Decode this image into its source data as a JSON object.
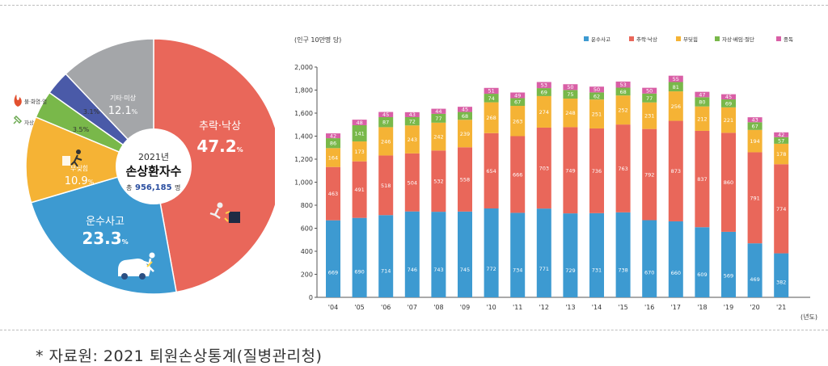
{
  "pie": {
    "center_year": "2021년",
    "center_title": "손상환자수",
    "center_total_prefix": "총",
    "center_total": "956,185",
    "center_total_unit": "명",
    "legend_fire": "불·화염·열",
    "legend_bite": "자상"
  },
  "bar": {
    "unit_label": "(인구 10만명 당)",
    "axis_unit": "(년도)"
  },
  "footnote": "* 자료원: 2021 퇴원손상통계(질병관리청)",
  "colors": {
    "traffic": "#3d9ad1",
    "fall": "#e9675a",
    "struck": "#f5b335",
    "cut": "#79b84a",
    "poison": "#d95fa6",
    "fire": "#9a9ca0",
    "other": "#a4a6a9",
    "pie_fire": "#4a5aa8",
    "pie_stab": "#79b84a"
  },
  "chart_data": [
    {
      "type": "pie",
      "title": "손상환자수",
      "slices": [
        {
          "label": "추락·낙상",
          "value": 47.2,
          "value_label": "47.2"
        },
        {
          "label": "운수사고",
          "value": 23.3,
          "value_label": "23.3"
        },
        {
          "label": "부딪힘",
          "value": 10.9,
          "value_label": "10.9"
        },
        {
          "label": "자상",
          "value": 3.5,
          "value_label": "3.5"
        },
        {
          "label": "불·화염·열",
          "value": 3.1,
          "value_label": "3.1"
        },
        {
          "label": "기타·미상",
          "value": 12.1,
          "value_label": "12.1"
        }
      ],
      "unit": "%"
    },
    {
      "type": "bar",
      "stacked": true,
      "categories": [
        "'04",
        "'05",
        "'06",
        "'07",
        "'08",
        "'09",
        "'10",
        "'11",
        "'12",
        "'13",
        "'14",
        "'15",
        "'16",
        "'17",
        "'18",
        "'19",
        "'20",
        "'21"
      ],
      "ylim": [
        0,
        2000
      ],
      "yticks": [
        "0",
        "200",
        "400",
        "600",
        "800",
        "1,000",
        "1,200",
        "1,400",
        "1,600",
        "1,800",
        "2,000"
      ],
      "ylabel": "(인구 10만명 당)",
      "xlabel": "(년도)",
      "legend_position": "top-right",
      "series": [
        {
          "name": "운수사고",
          "values": [
            669,
            690,
            714,
            746,
            743,
            745,
            772,
            734,
            771,
            729,
            731,
            738,
            670,
            660,
            609,
            569,
            469,
            382
          ]
        },
        {
          "name": "추락·낙상",
          "values": [
            463,
            491,
            518,
            504,
            532,
            558,
            654,
            666,
            703,
            749,
            736,
            763,
            792,
            873,
            837,
            860,
            791,
            774
          ]
        },
        {
          "name": "부딪힘",
          "values": [
            164,
            173,
            246,
            243,
            242,
            239,
            268,
            263,
            274,
            248,
            251,
            252,
            231,
            256,
            212,
            221,
            194,
            178
          ]
        },
        {
          "name": "자상·베임·절단",
          "values": [
            86,
            141,
            87,
            72,
            77,
            68,
            74,
            67,
            69,
            75,
            62,
            68,
            77,
            81,
            80,
            69,
            67,
            57
          ]
        },
        {
          "name": "중독",
          "values": [
            42,
            48,
            45,
            43,
            44,
            45,
            51,
            49,
            53,
            50,
            50,
            53,
            50,
            55,
            47,
            45,
            43,
            42
          ]
        }
      ]
    }
  ]
}
